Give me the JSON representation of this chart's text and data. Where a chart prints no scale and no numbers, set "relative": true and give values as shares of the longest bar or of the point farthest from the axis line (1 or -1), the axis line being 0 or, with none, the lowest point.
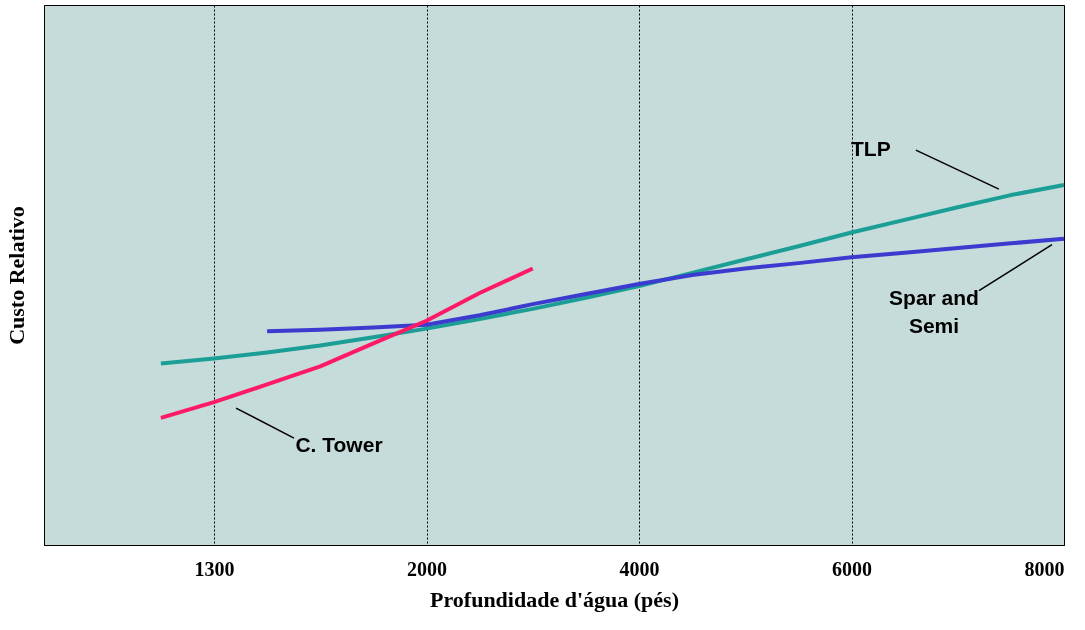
{
  "chart_data": {
    "type": "line",
    "relative": true,
    "xlabel": "Profundidade d'água (pés)",
    "ylabel": "Custo Relativo",
    "categories": [
      null,
      "1300",
      null,
      null,
      null,
      "2000",
      null,
      null,
      null,
      "4000",
      null,
      null,
      null,
      "6000",
      null,
      null,
      null,
      "8000"
    ],
    "grid": "x",
    "tick_labels": "x",
    "line_style": "solid",
    "series": [
      {
        "name": "TLP",
        "color": "#1a9e96",
        "values": [
          0.504,
          0.518,
          0.535,
          0.554,
          0.577,
          0.601,
          0.628,
          0.656,
          0.687,
          0.719,
          0.756,
          0.793,
          0.83,
          0.868,
          0.903,
          0.938,
          0.972,
          1
        ]
      },
      {
        "name": "Spar and Semi",
        "color": "#3b3bcf",
        "values": [
          null,
          null,
          0.594,
          0.598,
          0.604,
          0.612,
          0.638,
          0.669,
          0.697,
          0.725,
          0.75,
          0.768,
          0.783,
          0.799,
          0.812,
          0.825,
          0.838,
          0.851
        ]
      },
      {
        "name": "C. Tower",
        "color": "#ff1a66",
        "values": [
          0.353,
          0.397,
          0.446,
          0.496,
          0.56,
          0.623,
          0.7,
          0.768,
          null,
          null,
          null,
          null,
          null,
          null,
          null,
          null,
          null,
          null
        ]
      }
    ]
  }
}
